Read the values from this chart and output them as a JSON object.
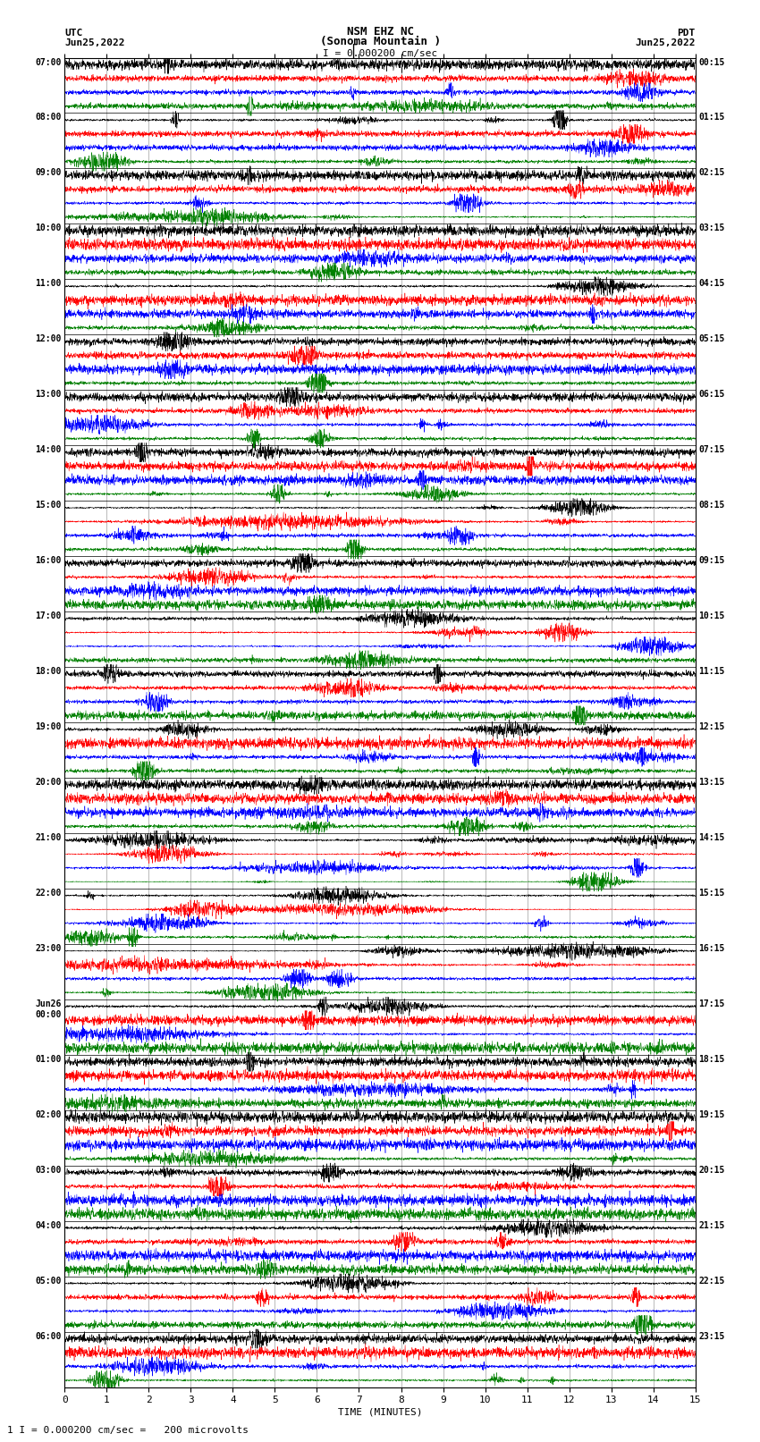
{
  "title_line1": "NSM EHZ NC",
  "title_line2": "(Sonoma Mountain )",
  "title_scale": "I = 0.000200 cm/sec",
  "left_header_line1": "UTC",
  "left_header_line2": "Jun25,2022",
  "right_header_line1": "PDT",
  "right_header_line2": "Jun25,2022",
  "xlabel": "TIME (MINUTES)",
  "footer": "1 I = 0.000200 cm/sec =   200 microvolts",
  "xlim": [
    0,
    15
  ],
  "xticks": [
    0,
    1,
    2,
    3,
    4,
    5,
    6,
    7,
    8,
    9,
    10,
    11,
    12,
    13,
    14,
    15
  ],
  "colors": [
    "black",
    "red",
    "blue",
    "green"
  ],
  "background_color": "white",
  "fig_width": 8.5,
  "fig_height": 16.13,
  "left_times_utc": [
    "07:00",
    "08:00",
    "09:00",
    "10:00",
    "11:00",
    "12:00",
    "13:00",
    "14:00",
    "15:00",
    "16:00",
    "17:00",
    "18:00",
    "19:00",
    "20:00",
    "21:00",
    "22:00",
    "23:00",
    "Jun26\n00:00",
    "01:00",
    "02:00",
    "03:00",
    "04:00",
    "05:00",
    "06:00"
  ],
  "right_times_pdt": [
    "00:15",
    "01:15",
    "02:15",
    "03:15",
    "04:15",
    "05:15",
    "06:15",
    "07:15",
    "08:15",
    "09:15",
    "10:15",
    "11:15",
    "12:15",
    "13:15",
    "14:15",
    "15:15",
    "16:15",
    "17:15",
    "18:15",
    "19:15",
    "20:15",
    "21:15",
    "22:15",
    "23:15"
  ],
  "num_hours": 24,
  "traces_per_hour": 4,
  "seed": 12345,
  "high_amp_hours": [
    14,
    15,
    16
  ],
  "med_amp_hours": [
    2,
    8,
    9,
    20,
    21,
    22
  ]
}
